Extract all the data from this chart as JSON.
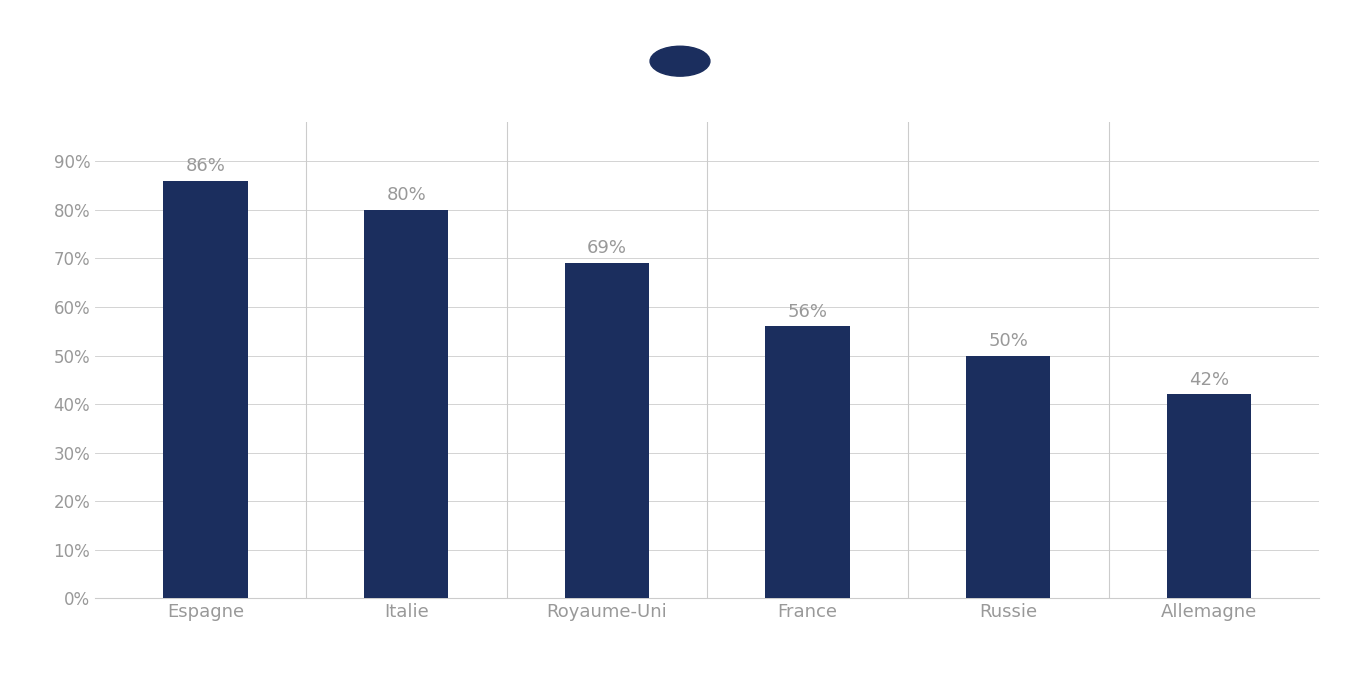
{
  "categories": [
    "Espagne",
    "Italie",
    "Royaume-Uni",
    "France",
    "Russie",
    "Allemagne"
  ],
  "values": [
    86,
    80,
    69,
    56,
    50,
    42
  ],
  "labels": [
    "86%",
    "80%",
    "69%",
    "56%",
    "50%",
    "42%"
  ],
  "bar_color": "#1b2e5e",
  "background_color": "#ffffff",
  "yticks": [
    0,
    10,
    20,
    30,
    40,
    50,
    60,
    70,
    80,
    90
  ],
  "ytick_labels": [
    "0%",
    "10%",
    "20%",
    "30%",
    "40%",
    "50%",
    "60%",
    "70%",
    "80%",
    "90%"
  ],
  "ylim": [
    0,
    98
  ],
  "tick_color": "#999999",
  "label_fontsize": 13,
  "xlabel_fontsize": 13,
  "dot_color": "#1b2e5e",
  "bar_width": 0.42,
  "separator_color": "#cccccc",
  "spine_color": "#cccccc"
}
